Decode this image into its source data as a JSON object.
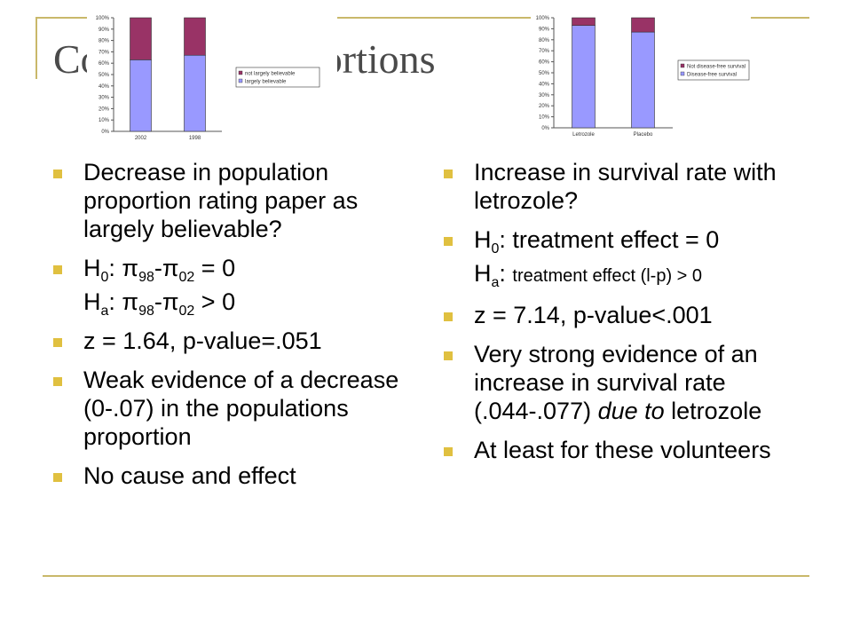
{
  "slide": {
    "title": "Comparing proportions",
    "left": {
      "b1": "Decrease in population proportion rating paper as largely believable?",
      "h0": {
        "prefix": "H",
        "sub0": "0",
        "colon": ": ",
        "pi": "π",
        "s98": "98",
        "dash": "-",
        "s02": "02",
        "tail": " = 0"
      },
      "ha": {
        "prefix": "H",
        "suba": "a",
        "colon": ": ",
        "pi": "π",
        "s98": "98",
        "dash": "-",
        "s02": "02",
        "tail": " > 0"
      },
      "b3": "z = 1.64, p-value=.051",
      "b4": "Weak evidence of a decrease (0-.07) in the populations proportion",
      "b5": "No cause and effect"
    },
    "right": {
      "b1": "Increase in survival rate with letrozole?",
      "h0": {
        "prefix": "H",
        "sub0": "0",
        "text": ": treatment effect = 0"
      },
      "ha": {
        "prefix": "H",
        "suba": "a",
        "colon": ": ",
        "text": "treatment effect (l-p) > 0"
      },
      "b3": "z = 7.14, p-value<.001",
      "b4a": "Very strong evidence of an increase in survival rate (.044-.077) ",
      "b4b": "due to",
      "b4c": " letrozole",
      "b5": "At least for these volunteers"
    }
  },
  "chart_data": [
    {
      "type": "bar",
      "stacked": true,
      "categories": [
        "2002",
        "1998"
      ],
      "series": [
        {
          "name": "largely believable",
          "values": [
            63,
            67
          ],
          "color": "#9999ff"
        },
        {
          "name": "not largely believable",
          "values": [
            37,
            33
          ],
          "color": "#993366"
        }
      ],
      "yticks": [
        "0%",
        "10%",
        "20%",
        "30%",
        "40%",
        "50%",
        "60%",
        "70%",
        "80%",
        "90%",
        "100%"
      ],
      "ylim": [
        0,
        100
      ],
      "legend": "right"
    },
    {
      "type": "bar",
      "stacked": true,
      "categories": [
        "Letrozole",
        "Placebo"
      ],
      "series": [
        {
          "name": "Disease-free survival",
          "values": [
            93,
            87
          ],
          "color": "#9999ff"
        },
        {
          "name": "Not disease-free survival",
          "values": [
            7,
            13
          ],
          "color": "#993366"
        }
      ],
      "yticks": [
        "0%",
        "10%",
        "20%",
        "30%",
        "40%",
        "50%",
        "60%",
        "70%",
        "80%",
        "90%",
        "100%"
      ],
      "ylim": [
        0,
        100
      ],
      "legend": "right"
    }
  ]
}
